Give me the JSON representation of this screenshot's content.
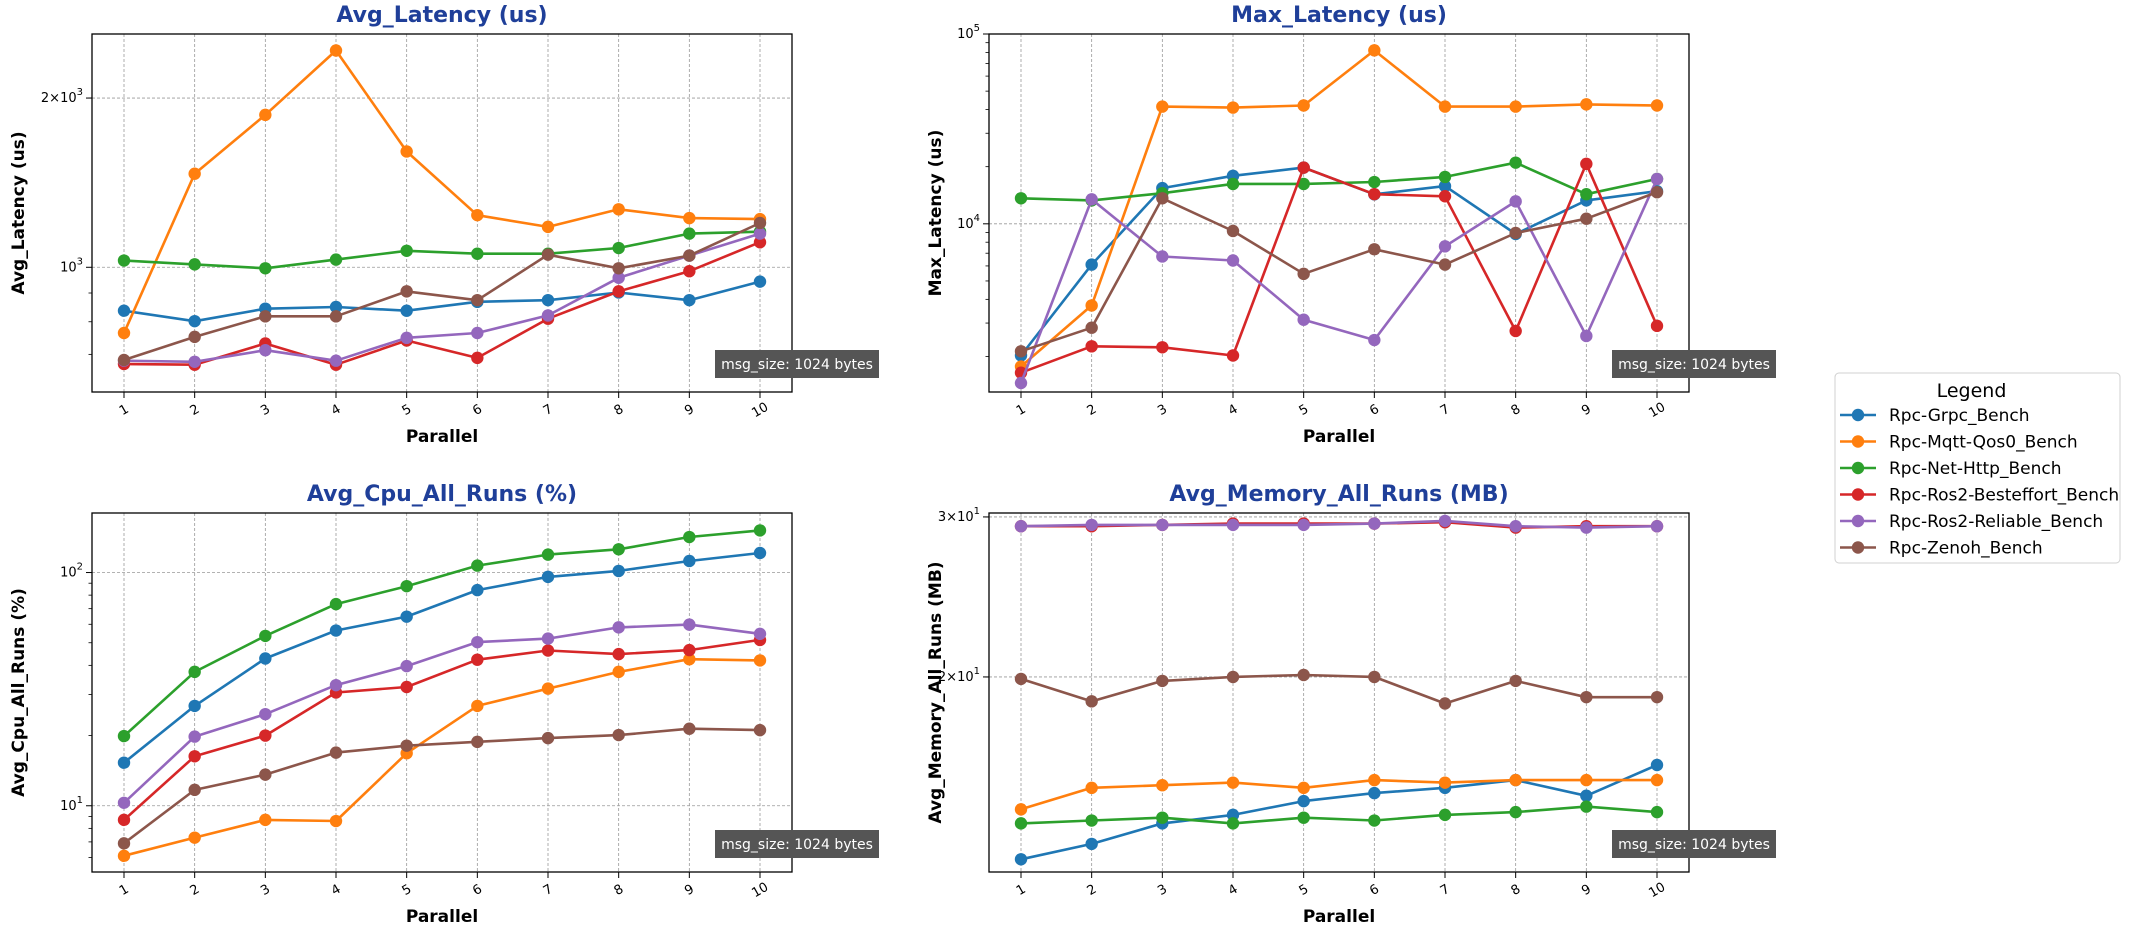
{
  "figure": {
    "annotation": "msg_size: 1024 bytes",
    "legend_title": "Legend",
    "colors": {
      "title": "#1f3f99",
      "annotation_bg": "#555555",
      "grid": "#999999"
    }
  },
  "chart_data": [
    {
      "type": "line",
      "title": "Avg_Latency (us)",
      "xlabel": "Parallel",
      "ylabel": "Avg_Latency (us)",
      "yscale": "log",
      "ylim": [
        600,
        2600
      ],
      "yticks": [
        {
          "value": 1000,
          "label": "10^3"
        },
        {
          "value": 2000,
          "label": "2×10^3"
        }
      ],
      "x": [
        1,
        2,
        3,
        4,
        5,
        6,
        7,
        8,
        9,
        10
      ],
      "xtick_labels": [
        "1",
        "2",
        "3",
        "4",
        "5",
        "6",
        "7",
        "8",
        "9",
        "10"
      ],
      "grid": true,
      "series": [
        {
          "name": "Rpc-Grpc_Bench",
          "color": "#1f77b4",
          "values": [
            837,
            802,
            844,
            850,
            837,
            868,
            874,
            902,
            874,
            943
          ]
        },
        {
          "name": "Rpc-Mqtt-Qos0_Bench",
          "color": "#ff7f0e",
          "values": [
            764,
            1467,
            1867,
            2430,
            1607,
            1238,
            1180,
            1268,
            1223,
            1218
          ]
        },
        {
          "name": "Rpc-Net-Http_Bench",
          "color": "#2ca02c",
          "values": [
            1028,
            1012,
            996,
            1032,
            1070,
            1057,
            1057,
            1082,
            1148,
            1157
          ]
        },
        {
          "name": "Rpc-Ros2-Besteffort_Bench",
          "color": "#d62728",
          "values": [
            673,
            671,
            732,
            671,
            741,
            690,
            810,
            906,
            984,
            1108
          ]
        },
        {
          "name": "Rpc-Ros2-Reliable_Bench",
          "color": "#9467bd",
          "values": [
            682,
            679,
            712,
            682,
            749,
            764,
            821,
            958,
            1049,
            1148
          ]
        },
        {
          "name": "Rpc-Zenoh_Bench",
          "color": "#8c564b",
          "values": [
            684,
            752,
            818,
            818,
            906,
            874,
            1053,
            996,
            1049,
            1199
          ]
        }
      ]
    },
    {
      "type": "line",
      "title": "Max_Latency (us)",
      "xlabel": "Parallel",
      "ylabel": "Max_Latency (us)",
      "yscale": "log",
      "ylim": [
        1300,
        100000
      ],
      "yticks": [
        {
          "value": 10000,
          "label": "10^4"
        },
        {
          "value": 100000,
          "label": "10^5"
        }
      ],
      "x": [
        1,
        2,
        3,
        4,
        5,
        6,
        7,
        8,
        9,
        10
      ],
      "xtick_labels": [
        "1",
        "2",
        "3",
        "4",
        "5",
        "6",
        "7",
        "8",
        "9",
        "10"
      ],
      "grid": true,
      "series": [
        {
          "name": "Rpc-Grpc_Bench",
          "color": "#1f77b4",
          "values": [
            2025,
            6097,
            15420,
            17900,
            19770,
            14300,
            15800,
            8840,
            13290,
            14860
          ]
        },
        {
          "name": "Rpc-Mqtt-Qos0_Bench",
          "color": "#ff7f0e",
          "values": [
            1771,
            3715,
            41460,
            40970,
            42020,
            82000,
            41460,
            41460,
            42580,
            42020
          ]
        },
        {
          "name": "Rpc-Net-Http_Bench",
          "color": "#2ca02c",
          "values": [
            13630,
            13290,
            14500,
            16220,
            16220,
            16600,
            17660,
            21000,
            14320,
            17220
          ]
        },
        {
          "name": "Rpc-Ros2-Besteffort_Bench",
          "color": "#d62728",
          "values": [
            1642,
            2263,
            2236,
            2025,
            19770,
            14330,
            13970,
            2726,
            20700,
            2900
          ]
        },
        {
          "name": "Rpc-Ros2-Reliable_Bench",
          "color": "#9467bd",
          "values": [
            1450,
            13450,
            6730,
            6410,
            3124,
            2442,
            7610,
            13130,
            2566,
            17220
          ]
        },
        {
          "name": "Rpc-Zenoh_Bench",
          "color": "#8c564b",
          "values": [
            2130,
            2835,
            13630,
            9170,
            5451,
            7340,
            6097,
            8950,
            10640,
            14670
          ]
        }
      ]
    },
    {
      "type": "line",
      "title": "Avg_Cpu_All_Runs (%)",
      "xlabel": "Parallel",
      "ylabel": "Avg_Cpu_All_Runs (%)",
      "yscale": "log",
      "ylim": [
        5.2,
        180
      ],
      "yticks": [
        {
          "value": 10,
          "label": "10^1"
        },
        {
          "value": 100,
          "label": "10^2"
        }
      ],
      "x": [
        1,
        2,
        3,
        4,
        5,
        6,
        7,
        8,
        9,
        10
      ],
      "xtick_labels": [
        "1",
        "2",
        "3",
        "4",
        "5",
        "6",
        "7",
        "8",
        "9",
        "10"
      ],
      "grid": true,
      "series": [
        {
          "name": "Rpc-Grpc_Bench",
          "color": "#1f77b4",
          "values": [
            15.3,
            26.8,
            42.8,
            56.4,
            64.7,
            84.1,
            95.8,
            101.6,
            112.1,
            121.3
          ]
        },
        {
          "name": "Rpc-Mqtt-Qos0_Bench",
          "color": "#ff7f0e",
          "values": [
            6.1,
            7.3,
            8.7,
            8.6,
            16.8,
            26.8,
            31.8,
            37.5,
            42.5,
            42.0
          ]
        },
        {
          "name": "Rpc-Net-Http_Bench",
          "color": "#2ca02c",
          "values": [
            19.9,
            37.5,
            53.5,
            73.2,
            87.4,
            107.1,
            119.4,
            125.8,
            142.0,
            151.6
          ]
        },
        {
          "name": "Rpc-Ros2-Besteffort_Bench",
          "color": "#d62728",
          "values": [
            8.7,
            16.3,
            20.0,
            30.6,
            32.3,
            42.3,
            46.3,
            44.7,
            46.5,
            51.4
          ]
        },
        {
          "name": "Rpc-Ros2-Reliable_Bench",
          "color": "#9467bd",
          "values": [
            10.3,
            19.8,
            24.7,
            32.9,
            39.7,
            50.3,
            52.1,
            58.2,
            59.8,
            54.6
          ]
        },
        {
          "name": "Rpc-Zenoh_Bench",
          "color": "#8c564b",
          "values": [
            6.9,
            11.7,
            13.6,
            16.9,
            18.1,
            18.8,
            19.5,
            20.1,
            21.4,
            21.1
          ]
        }
      ]
    },
    {
      "type": "line",
      "title": "Avg_Memory_All_Runs (MB)",
      "xlabel": "Parallel",
      "ylabel": "Avg_Memory_All_Runs (MB)",
      "yscale": "log",
      "ylim": [
        12.2,
        30.3
      ],
      "yticks": [
        {
          "value": 20,
          "label": "2×10^1"
        },
        {
          "value": 30,
          "label": "3×10^1"
        }
      ],
      "x": [
        1,
        2,
        3,
        4,
        5,
        6,
        7,
        8,
        9,
        10
      ],
      "xtick_labels": [
        "1",
        "2",
        "3",
        "4",
        "5",
        "6",
        "7",
        "8",
        "9",
        "10"
      ],
      "grid": true,
      "series": [
        {
          "name": "Rpc-Grpc_Bench",
          "color": "#1f77b4",
          "values": [
            12.6,
            13.1,
            13.8,
            14.1,
            14.6,
            14.9,
            15.1,
            15.4,
            14.8,
            16.0
          ]
        },
        {
          "name": "Rpc-Mqtt-Qos0_Bench",
          "color": "#ff7f0e",
          "values": [
            14.3,
            15.1,
            15.2,
            15.3,
            15.1,
            15.4,
            15.3,
            15.4,
            15.4,
            15.4
          ]
        },
        {
          "name": "Rpc-Net-Http_Bench",
          "color": "#2ca02c",
          "values": [
            13.8,
            13.9,
            14.0,
            13.8,
            14.0,
            13.9,
            14.1,
            14.2,
            14.4,
            14.2
          ]
        },
        {
          "name": "Rpc-Ros2-Besteffort_Bench",
          "color": "#d62728",
          "values": [
            29.3,
            29.3,
            29.4,
            29.5,
            29.5,
            29.5,
            29.6,
            29.2,
            29.3,
            29.3
          ]
        },
        {
          "name": "Rpc-Ros2-Reliable_Bench",
          "color": "#9467bd",
          "values": [
            29.3,
            29.4,
            29.4,
            29.4,
            29.4,
            29.5,
            29.7,
            29.3,
            29.2,
            29.3
          ]
        },
        {
          "name": "Rpc-Zenoh_Bench",
          "color": "#8c564b",
          "values": [
            19.9,
            18.8,
            19.8,
            20.0,
            20.1,
            20.0,
            18.7,
            19.8,
            19.0,
            19.0
          ]
        }
      ]
    }
  ],
  "legend": {
    "title": "Legend",
    "placement": "right",
    "entries": [
      {
        "label": "Rpc-Grpc_Bench",
        "color": "#1f77b4"
      },
      {
        "label": "Rpc-Mqtt-Qos0_Bench",
        "color": "#ff7f0e"
      },
      {
        "label": "Rpc-Net-Http_Bench",
        "color": "#2ca02c"
      },
      {
        "label": "Rpc-Ros2-Besteffort_Bench",
        "color": "#d62728"
      },
      {
        "label": "Rpc-Ros2-Reliable_Bench",
        "color": "#9467bd"
      },
      {
        "label": "Rpc-Zenoh_Bench",
        "color": "#8c564b"
      }
    ]
  }
}
